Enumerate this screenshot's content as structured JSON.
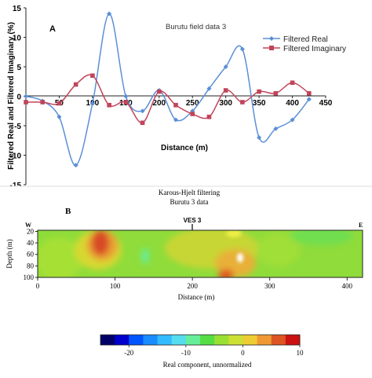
{
  "panel_a": {
    "letter": "A",
    "title": "Burutu field data 3",
    "xlabel": "Distance (m)",
    "ylabel": "Filtered Real and Filtered Imaginary (%)",
    "y_ticks": [
      "15",
      "10",
      "5",
      "0",
      "-5",
      "-10",
      "-15"
    ],
    "x_ticks": [
      "50",
      "100",
      "150",
      "200",
      "250",
      "300",
      "350",
      "400",
      "450"
    ],
    "colors": {
      "real": "#5b8fd6",
      "imaginary": "#c0455a"
    }
  },
  "panel_b": {
    "letter": "B",
    "title_line1": "Karous-Hjelt filtering",
    "title_line2": "Burutu 3 data",
    "marker_w": "W",
    "marker_e": "E",
    "marker_ves": "VES 3",
    "ylabel": "Depth (m)",
    "xlabel": "Distance (m)",
    "y_ticks": [
      "20",
      "40",
      "60",
      "80",
      "100"
    ],
    "x_ticks": [
      "0",
      "100",
      "200",
      "300",
      "400"
    ],
    "colorbar_ticks": [
      "-20",
      "-10",
      "0",
      "10"
    ],
    "colorbar_label": "Real component, unnormalized",
    "colorbar_colors": [
      "#000066",
      "#0000cc",
      "#0055ff",
      "#1a8cff",
      "#33bbff",
      "#55ddee",
      "#66ee99",
      "#55dd44",
      "#99e033",
      "#cce033",
      "#eecc33",
      "#ee9933",
      "#dd5522",
      "#cc1111"
    ]
  },
  "chart_data": [
    {
      "type": "line",
      "title": "Burutu field data 3",
      "xlabel": "Distance (m)",
      "ylabel": "Filtered Real and Filtered Imaginary (%)",
      "ylim": [
        -15,
        15
      ],
      "xlim": [
        0,
        450
      ],
      "legend_position": "top-right",
      "series": [
        {
          "name": "Filtered Real",
          "x": [
            0,
            25,
            50,
            75,
            100,
            125,
            150,
            175,
            200,
            225,
            250,
            275,
            300,
            325,
            350,
            375,
            400,
            425
          ],
          "values": [
            0,
            -0.8,
            -3.5,
            -11.7,
            -1.2,
            14,
            0,
            -2.5,
            1,
            -4,
            -2.5,
            1.3,
            5,
            8,
            -7,
            -5.5,
            -4,
            -0.5
          ]
        },
        {
          "name": "Filtered Imaginary",
          "x": [
            0,
            25,
            50,
            75,
            100,
            125,
            150,
            175,
            200,
            225,
            250,
            275,
            300,
            325,
            350,
            375,
            400,
            425
          ],
          "values": [
            -1,
            -1,
            -1.2,
            2,
            3.5,
            -1.5,
            -1,
            -4.5,
            0.8,
            -1.5,
            -3,
            -3.5,
            1,
            -1,
            0.8,
            0.5,
            2.3,
            0.5
          ]
        }
      ]
    },
    {
      "type": "heatmap",
      "title": "Karous-Hjelt filtering Burutu 3 data",
      "xlabel": "Distance (m)",
      "ylabel": "Depth (m)",
      "xlim": [
        0,
        420
      ],
      "ylim": [
        100,
        18
      ],
      "colorbar_label": "Real component, unnormalized",
      "colorbar_range": [
        -25,
        10
      ]
    }
  ]
}
